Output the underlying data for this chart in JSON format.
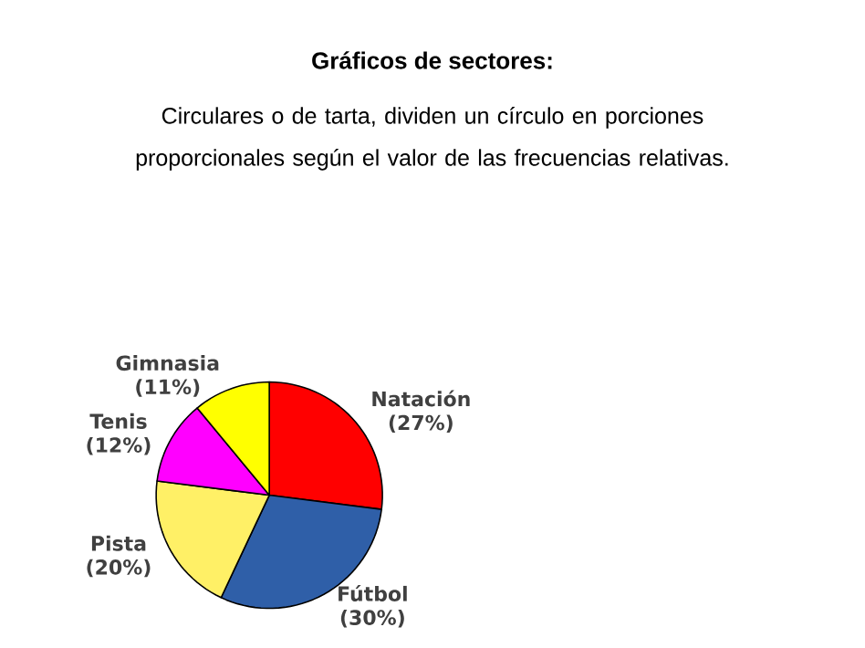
{
  "chart_data": {
    "type": "pie",
    "title": "Gráficos de sectores:",
    "subtitle": "Circulares o de tarta, dividen un círculo en porciones proporcionales según el valor de las frecuencias relativas.",
    "categories": [
      "Natación",
      "Fútbol",
      "Pista",
      "Tenis",
      "Gimnasia"
    ],
    "values": [
      27,
      30,
      20,
      12,
      11
    ],
    "colors": [
      "#ff0000",
      "#2f5fa8",
      "#fff066",
      "#ff00ff",
      "#ffff00"
    ],
    "value_labels": [
      "(27%)",
      "(30%)",
      "(20%)",
      "(12%)",
      "(11%)"
    ]
  }
}
